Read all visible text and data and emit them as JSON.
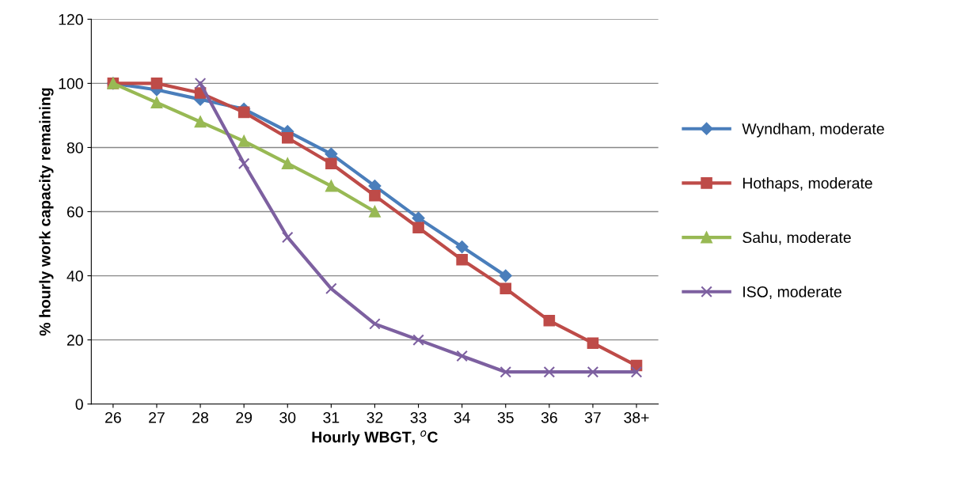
{
  "chart_data": {
    "type": "line",
    "xlabel": "Hourly WBGT, $^{o}$C",
    "ylabel": "% hourly work capacity remaining",
    "categories": [
      "26",
      "27",
      "28",
      "29",
      "30",
      "31",
      "32",
      "33",
      "34",
      "35",
      "36",
      "37",
      "38+"
    ],
    "ylim": [
      0,
      120
    ],
    "yticks": [
      0,
      20,
      40,
      60,
      80,
      100,
      120
    ],
    "grid": "y",
    "legend": "right",
    "series": [
      {
        "name": "Wyndham, moderate",
        "color": "#4a7ebb",
        "marker": "diamond",
        "values": [
          100,
          98,
          95,
          92,
          85,
          78,
          68,
          58,
          49,
          40,
          null,
          null,
          null
        ]
      },
      {
        "name": "Hothaps, moderate",
        "color": "#be4b48",
        "marker": "square",
        "values": [
          100,
          100,
          97,
          91,
          83,
          75,
          65,
          55,
          45,
          36,
          26,
          19,
          12
        ]
      },
      {
        "name": "Sahu, moderate",
        "color": "#98b954",
        "marker": "triangle",
        "values": [
          100,
          94,
          88,
          82,
          75,
          68,
          60,
          null,
          null,
          null,
          null,
          null,
          null
        ]
      },
      {
        "name": "ISO, moderate",
        "color": "#7d60a0",
        "marker": "cross",
        "values": [
          null,
          null,
          100,
          75,
          52,
          36,
          25,
          20,
          15,
          10,
          10,
          10,
          10
        ]
      }
    ]
  }
}
